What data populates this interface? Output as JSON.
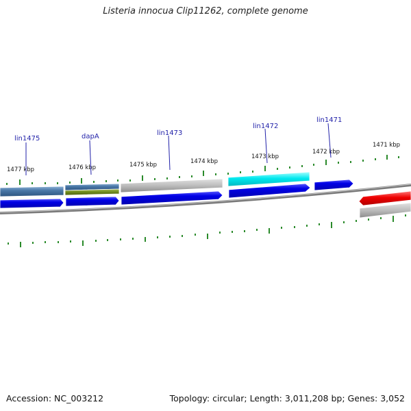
{
  "title": "Listeria innocua Clip11262, complete genome",
  "footer": {
    "accession": "Accession: NC_003212",
    "summary": "Topology: circular; Length: 3,011,208 bp; Genes: 3,052"
  },
  "kbp_labels": [
    "1477 kbp",
    "1476 kbp",
    "1475 kbp",
    "1474 kbp",
    "1473 kbp",
    "1472 kbp",
    "1471 kbp"
  ],
  "gene_labels": [
    "lin1475",
    "dapA",
    "lin1473",
    "lin1472",
    "lin1471"
  ],
  "colors": {
    "cds_blue": "#0000e6",
    "steelblue": "#4a78a8",
    "olive": "#6f8a1c",
    "grey": "#b8b8b8",
    "cyan": "#00e8ee",
    "red": "#ee0000",
    "tick": "#2a8a2a",
    "gene_label": "#1f1fa8"
  }
}
